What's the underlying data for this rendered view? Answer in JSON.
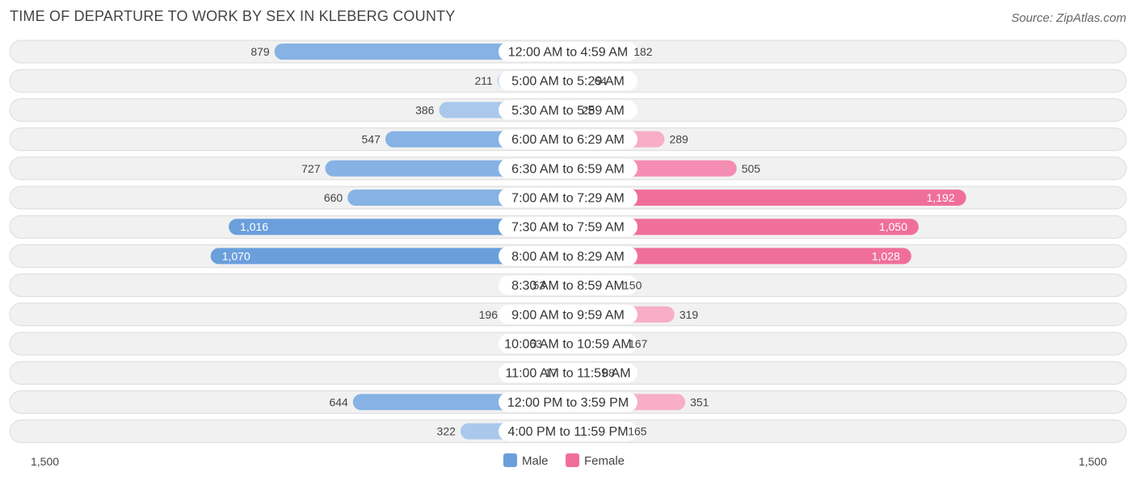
{
  "header": {
    "title": "TIME OF DEPARTURE TO WORK BY SEX IN KLEBERG COUNTY",
    "source": "Source: ZipAtlas.com"
  },
  "colors": {
    "male_strong": "#6a9fdc",
    "male_light": "#a9c8ec",
    "female_strong": "#f06f9a",
    "female_light": "#f7aec6",
    "row_bg": "#f1f1f1",
    "row_border": "#dcdcdc"
  },
  "chart_data": {
    "type": "bar",
    "orientation": "horizontal-diverging",
    "title": "TIME OF DEPARTURE TO WORK BY SEX IN KLEBERG COUNTY",
    "categories": [
      "12:00 AM to 4:59 AM",
      "5:00 AM to 5:29 AM",
      "5:30 AM to 5:59 AM",
      "6:00 AM to 6:29 AM",
      "6:30 AM to 6:59 AM",
      "7:00 AM to 7:29 AM",
      "7:30 AM to 7:59 AM",
      "8:00 AM to 8:29 AM",
      "8:30 AM to 8:59 AM",
      "9:00 AM to 9:59 AM",
      "10:00 AM to 10:59 AM",
      "11:00 AM to 11:59 AM",
      "12:00 PM to 3:59 PM",
      "4:00 PM to 11:59 PM"
    ],
    "series": [
      {
        "name": "Male",
        "values": [
          879,
          211,
          386,
          547,
          727,
          660,
          1016,
          1070,
          53,
          196,
          63,
          17,
          644,
          322
        ],
        "labels": [
          "879",
          "211",
          "386",
          "547",
          "727",
          "660",
          "1,016",
          "1,070",
          "53",
          "196",
          "63",
          "17",
          "644",
          "322"
        ]
      },
      {
        "name": "Female",
        "values": [
          182,
          64,
          28,
          289,
          505,
          1192,
          1050,
          1028,
          150,
          319,
          167,
          88,
          351,
          165
        ],
        "labels": [
          "182",
          "64",
          "28",
          "289",
          "505",
          "1,192",
          "1,050",
          "1,028",
          "150",
          "319",
          "167",
          "88",
          "351",
          "165"
        ]
      }
    ],
    "axis": {
      "max": 1500,
      "left_label": "1,500",
      "right_label": "1,500"
    },
    "legend_position": "bottom-center"
  }
}
